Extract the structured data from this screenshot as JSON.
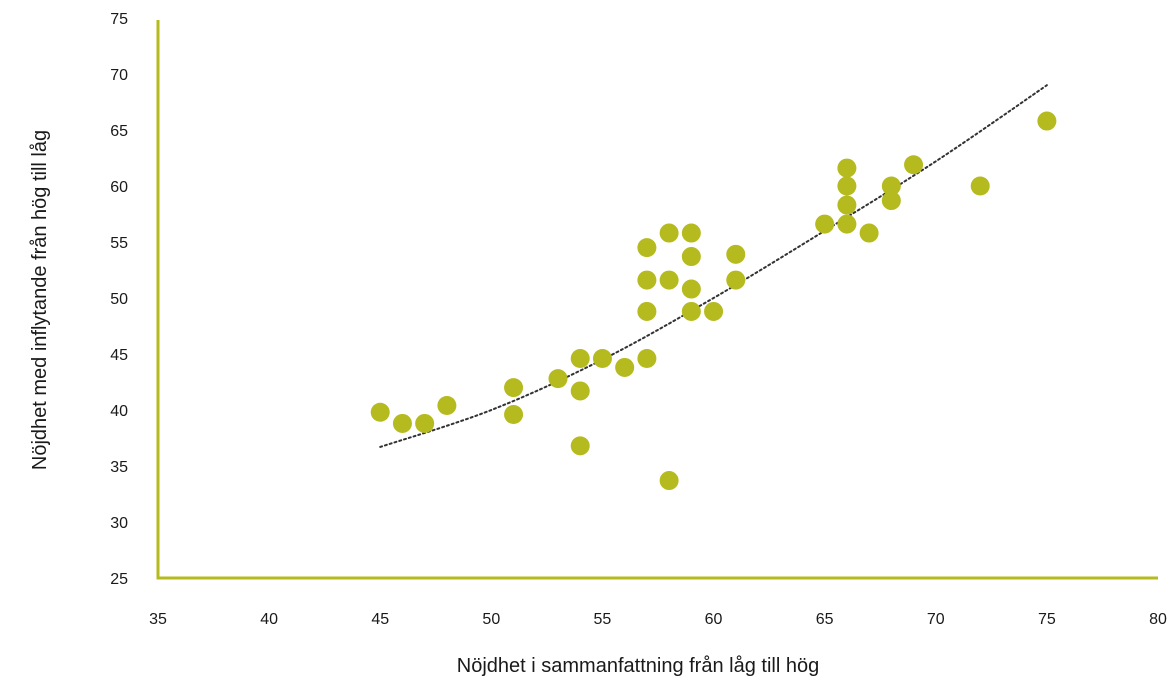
{
  "chart_data": {
    "type": "scatter",
    "title": "",
    "xlabel": "Nöjdhet i sammanfattning från låg till hög",
    "ylabel": "Nöjdhet med inflytande från hög till låg",
    "xlim": [
      35,
      80
    ],
    "ylim": [
      25,
      75
    ],
    "xticks": [
      "35",
      "40",
      "45",
      "50",
      "55",
      "60",
      "65",
      "70",
      "75",
      "80"
    ],
    "yticks": [
      "25",
      "30",
      "35",
      "40",
      "45",
      "50",
      "55",
      "60",
      "65",
      "70",
      "75"
    ],
    "grid": false,
    "legend": "none",
    "colors": {
      "points": "#b5ba1e",
      "axis": "#b5ba1e",
      "trend": "#333333",
      "text": "#1a1a1a"
    },
    "points": [
      {
        "x": 45,
        "y": 39.8
      },
      {
        "x": 46,
        "y": 38.8
      },
      {
        "x": 47,
        "y": 38.8
      },
      {
        "x": 48,
        "y": 40.4
      },
      {
        "x": 51,
        "y": 42.0
      },
      {
        "x": 51,
        "y": 39.6
      },
      {
        "x": 53,
        "y": 42.8
      },
      {
        "x": 54,
        "y": 44.6
      },
      {
        "x": 54,
        "y": 41.7
      },
      {
        "x": 54,
        "y": 36.8
      },
      {
        "x": 55,
        "y": 44.6
      },
      {
        "x": 56,
        "y": 43.8
      },
      {
        "x": 57,
        "y": 54.5
      },
      {
        "x": 57,
        "y": 51.6
      },
      {
        "x": 57,
        "y": 48.8
      },
      {
        "x": 57,
        "y": 44.6
      },
      {
        "x": 58,
        "y": 55.8
      },
      {
        "x": 58,
        "y": 51.6
      },
      {
        "x": 58,
        "y": 33.7
      },
      {
        "x": 59,
        "y": 55.8
      },
      {
        "x": 59,
        "y": 53.7
      },
      {
        "x": 59,
        "y": 50.8
      },
      {
        "x": 59,
        "y": 48.8
      },
      {
        "x": 60,
        "y": 48.8
      },
      {
        "x": 61,
        "y": 53.9
      },
      {
        "x": 61,
        "y": 51.6
      },
      {
        "x": 65,
        "y": 56.6
      },
      {
        "x": 66,
        "y": 61.6
      },
      {
        "x": 66,
        "y": 60.0
      },
      {
        "x": 66,
        "y": 58.3
      },
      {
        "x": 66,
        "y": 56.6
      },
      {
        "x": 67,
        "y": 55.8
      },
      {
        "x": 68,
        "y": 60.0
      },
      {
        "x": 68,
        "y": 58.7
      },
      {
        "x": 69,
        "y": 61.9
      },
      {
        "x": 72,
        "y": 60.0
      },
      {
        "x": 75,
        "y": 65.8
      }
    ],
    "trendline": {
      "type": "polynomial",
      "points": [
        {
          "x": 45,
          "y": 36.7
        },
        {
          "x": 50,
          "y": 40.0
        },
        {
          "x": 55,
          "y": 44.5
        },
        {
          "x": 60,
          "y": 50.0
        },
        {
          "x": 65,
          "y": 56.0
        },
        {
          "x": 70,
          "y": 62.2
        },
        {
          "x": 75,
          "y": 69.0
        }
      ]
    }
  }
}
